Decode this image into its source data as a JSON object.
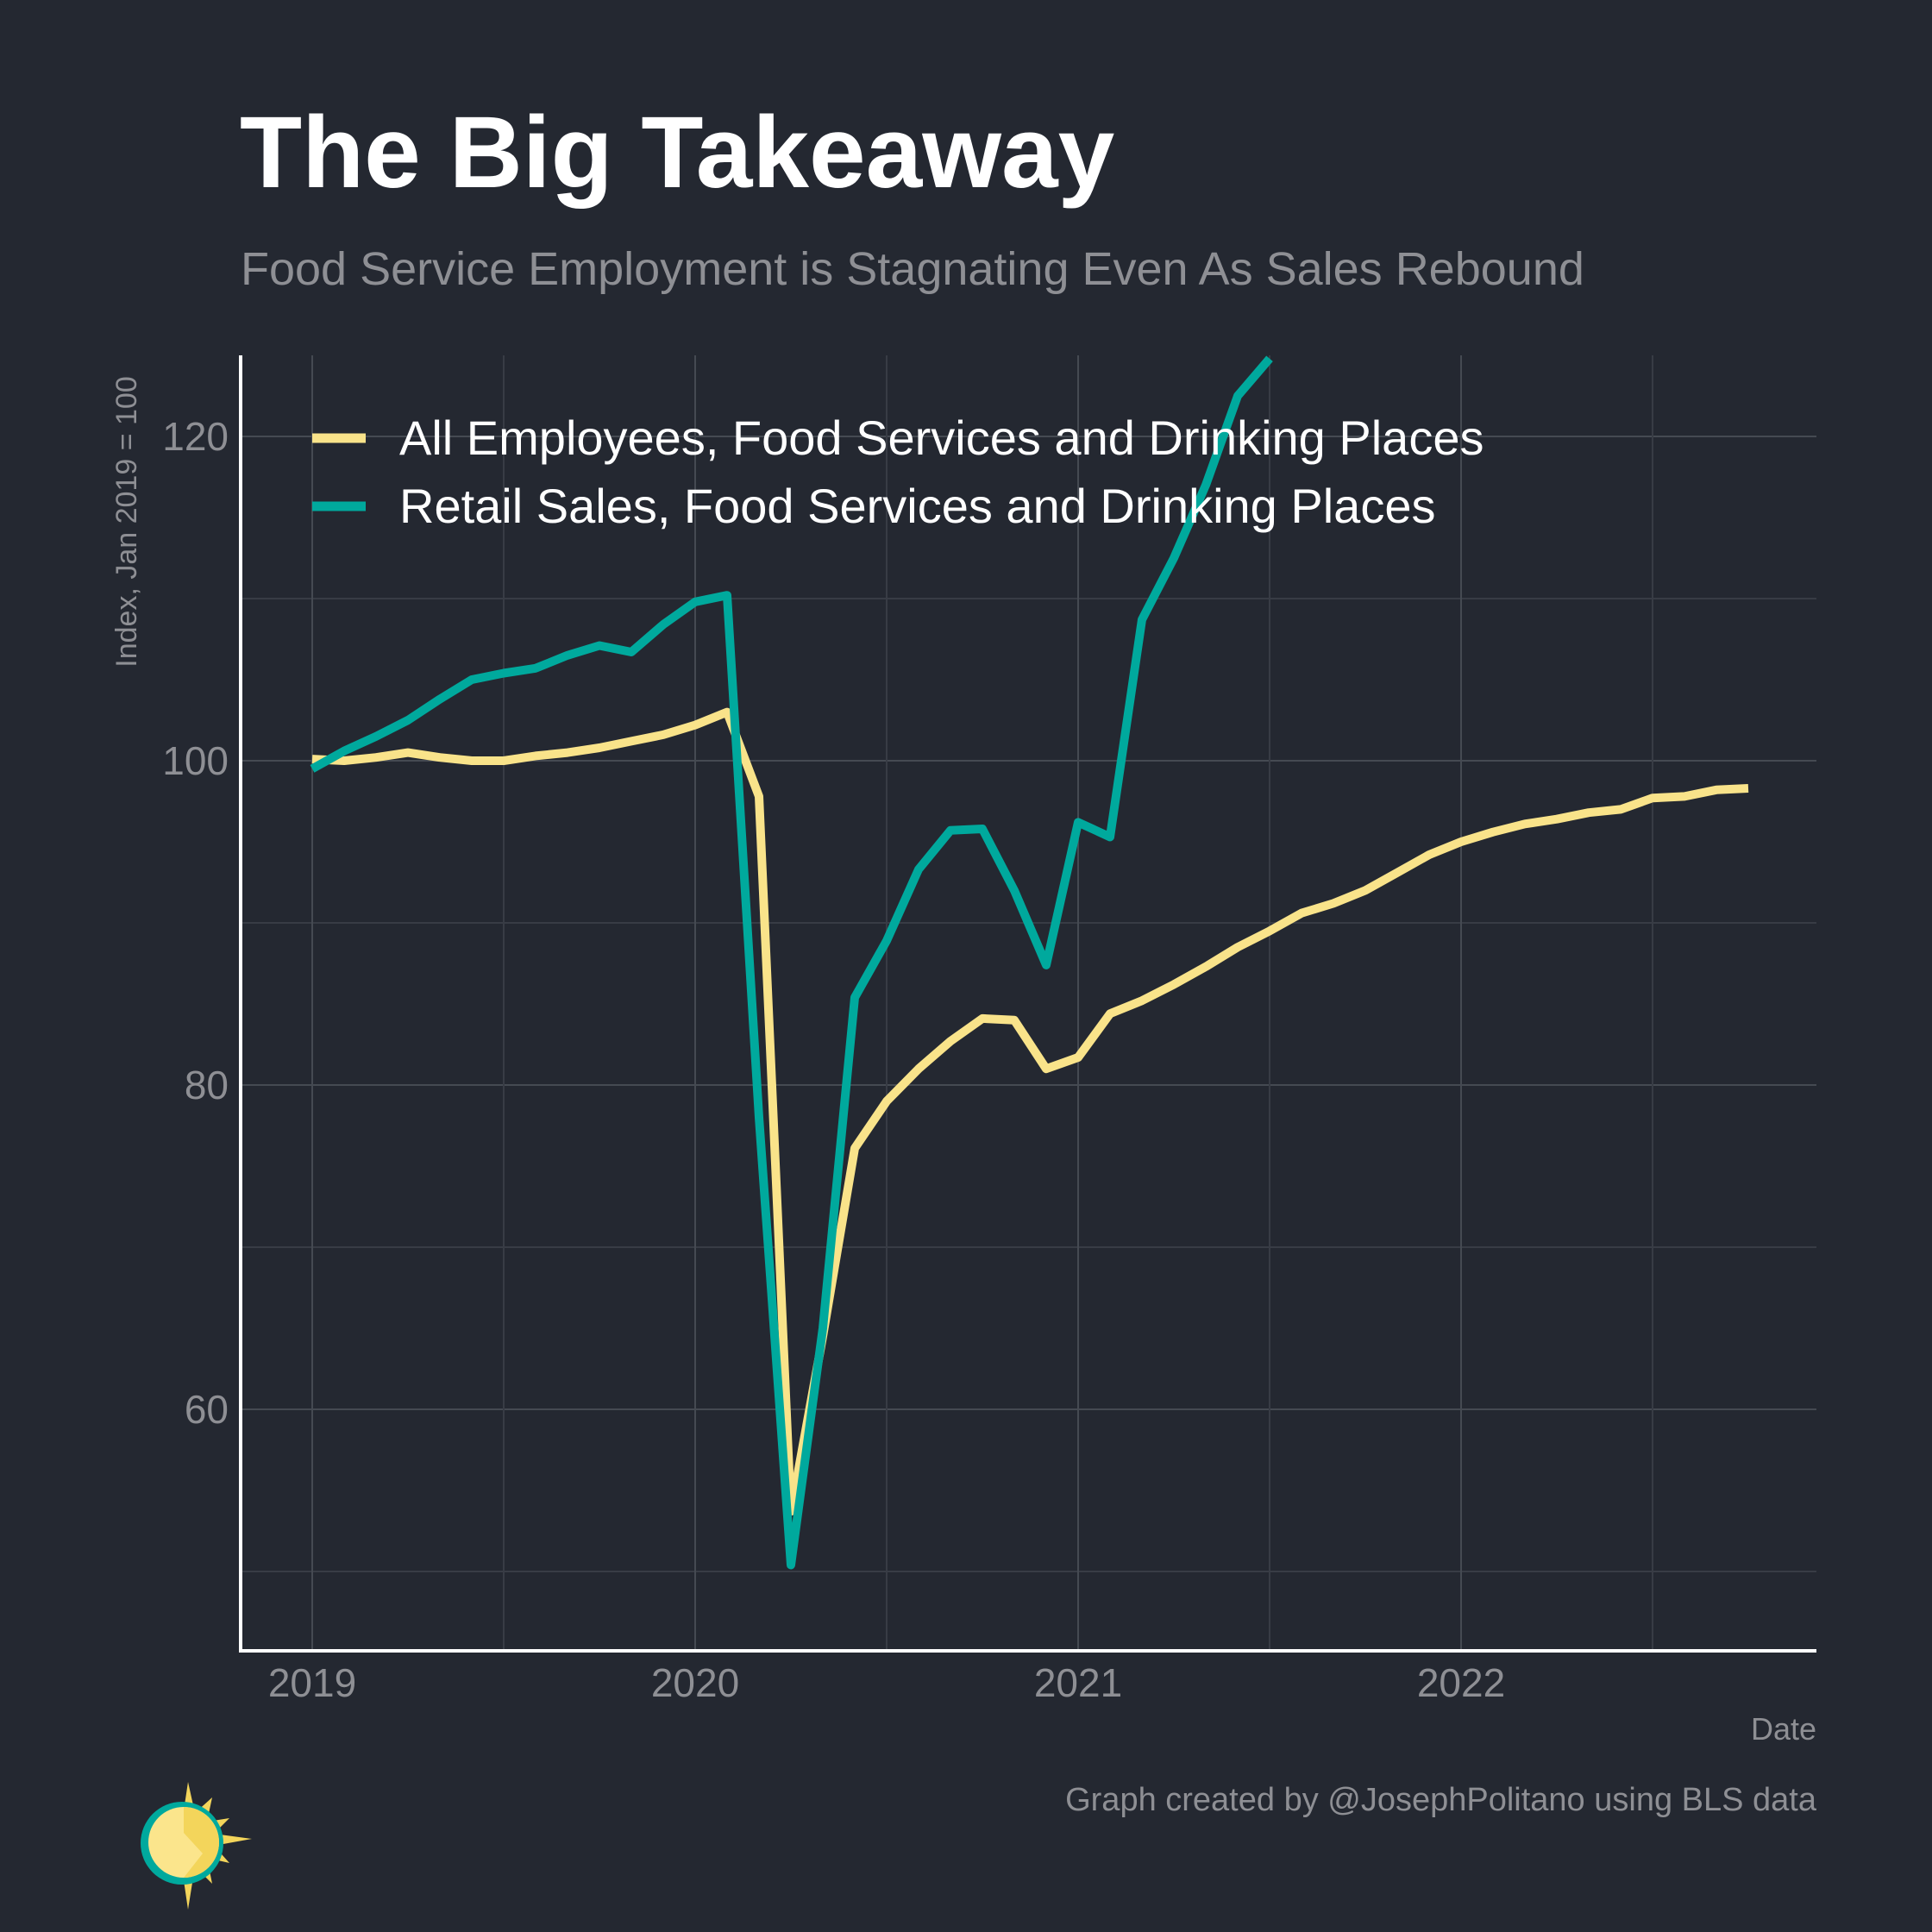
{
  "chart_data": {
    "type": "line",
    "title": "The Big Takeaway",
    "subtitle": "Food Service Employment is Stagnating Even As Sales Rebound",
    "xlabel": "Date",
    "ylabel": "Index, Jan 2019 = 100",
    "caption": "Graph created by @JosephPolitano using BLS data",
    "xlim": [
      "2018-10",
      "2022-11"
    ],
    "ylim": [
      45,
      125
    ],
    "y_ticks": [
      60,
      80,
      100,
      120
    ],
    "x_ticks": [
      "2019",
      "2020",
      "2021",
      "2022"
    ],
    "grid": true,
    "legend_position": "top-left",
    "background": "#242831",
    "series": [
      {
        "name": "All Employees, Food Services and Drinking Places",
        "color": "#F9E38A",
        "x": [
          "2019-01",
          "2019-02",
          "2019-03",
          "2019-04",
          "2019-05",
          "2019-06",
          "2019-07",
          "2019-08",
          "2019-09",
          "2019-10",
          "2019-11",
          "2019-12",
          "2020-01",
          "2020-02",
          "2020-03",
          "2020-04",
          "2020-05",
          "2020-06",
          "2020-07",
          "2020-08",
          "2020-09",
          "2020-10",
          "2020-11",
          "2020-12",
          "2021-01",
          "2021-02",
          "2021-03",
          "2021-04",
          "2021-05",
          "2021-06",
          "2021-07",
          "2021-08",
          "2021-09",
          "2021-10",
          "2021-11",
          "2021-12",
          "2022-01",
          "2022-02",
          "2022-03",
          "2022-04",
          "2022-05",
          "2022-06",
          "2022-07",
          "2022-08",
          "2022-09",
          "2022-10"
        ],
        "values": [
          100.1,
          100.0,
          100.2,
          100.5,
          100.2,
          100.0,
          100.0,
          100.3,
          100.5,
          100.8,
          101.2,
          101.6,
          102.2,
          103.0,
          97.8,
          53.7,
          64.5,
          76.1,
          79.0,
          81.0,
          82.7,
          84.1,
          84.0,
          81.0,
          81.7,
          84.4,
          85.2,
          86.2,
          87.3,
          88.5,
          89.5,
          90.6,
          91.2,
          92.0,
          93.1,
          94.2,
          95.0,
          95.6,
          96.1,
          96.4,
          96.8,
          97.0,
          97.7,
          97.8,
          98.2,
          98.3
        ]
      },
      {
        "name": "Retail Sales, Food Services and Drinking Places",
        "color": "#00A99D",
        "x": [
          "2019-01",
          "2019-02",
          "2019-03",
          "2019-04",
          "2019-05",
          "2019-06",
          "2019-07",
          "2019-08",
          "2019-09",
          "2019-10",
          "2019-11",
          "2019-12",
          "2020-01",
          "2020-02",
          "2020-03",
          "2020-04",
          "2020-05",
          "2020-06",
          "2020-07",
          "2020-08",
          "2020-09",
          "2020-10",
          "2020-11",
          "2020-12",
          "2021-01",
          "2021-02",
          "2021-03",
          "2021-04",
          "2021-05",
          "2021-06",
          "2021-07"
        ],
        "values": [
          99.5,
          100.6,
          101.5,
          102.5,
          103.8,
          105.0,
          105.4,
          105.7,
          106.5,
          107.1,
          106.7,
          108.4,
          109.8,
          110.2,
          78.0,
          50.4,
          65.0,
          85.4,
          88.9,
          93.3,
          95.7,
          95.8,
          92.0,
          87.4,
          96.2,
          95.3,
          108.7,
          112.5,
          117.0,
          122.5,
          124.8
        ]
      }
    ]
  }
}
